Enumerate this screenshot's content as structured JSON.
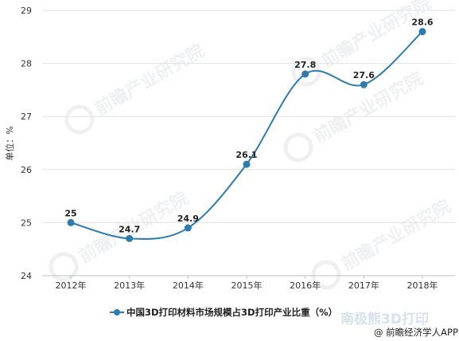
{
  "chart_data": {
    "type": "line",
    "categories": [
      "2012年",
      "2013年",
      "2014年",
      "2015年",
      "2016年",
      "2017年",
      "2018年"
    ],
    "series": [
      {
        "name": "中国3D打印材料市场规模占3D打印产业比重（%）",
        "values": [
          25,
          24.7,
          24.9,
          26.1,
          27.8,
          27.6,
          28.6
        ],
        "color": "#2e7bae"
      }
    ],
    "data_labels": [
      "25",
      "24.7",
      "24.9",
      "26.1",
      "27.8",
      "27.6",
      "28.6"
    ],
    "y_ticks": [
      "24",
      "25",
      "26",
      "27",
      "28",
      "29"
    ],
    "ylim": [
      24,
      29
    ],
    "ylabel": "单位：%",
    "xlabel": "",
    "title": "",
    "grid": true,
    "legend_position": "bottom-center",
    "smooth": true
  },
  "watermarks": {
    "brand_cn": "前瞻产业研究院",
    "bottom_brand": "南极熊3D打印"
  },
  "source": "@ 前瞻经济学人APP"
}
